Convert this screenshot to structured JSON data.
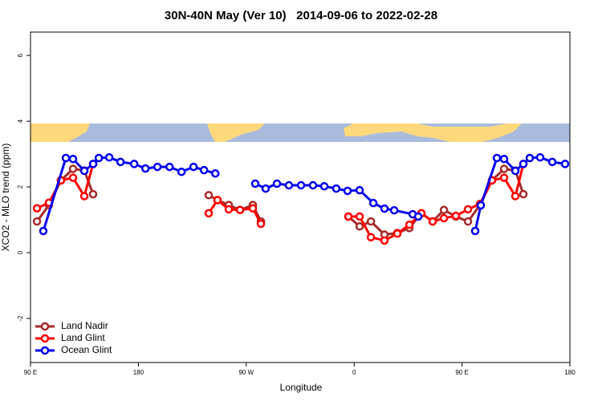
{
  "chart_data": {
    "type": "line",
    "title": "30N-40N May (Ver 10)   2014-09-06 to 2022-02-28",
    "xlabel": "Longitude",
    "ylabel": "XCO2 - MLO trend (ppm)",
    "xlim": [
      90,
      540
    ],
    "ylim": [
      -3.34,
      6.71
    ],
    "xticks": [
      {
        "value": 90,
        "label": "90 E"
      },
      180,
      {
        "value": 270,
        "label": "90 W"
      },
      {
        "value": 360,
        "label": "0"
      },
      {
        "value": 450,
        "label": "90 E"
      },
      {
        "value": 540,
        "label": "180"
      }
    ],
    "yticks": [
      -2,
      0,
      2,
      4,
      6
    ],
    "legend": "bottom-left",
    "series": [
      {
        "name": "Land Nadir",
        "color": "#a52a2a",
        "x": [
          95.4,
          105.4,
          115.4,
          125.5,
          134.9,
          142.2,
          null,
          238.7,
          246,
          255.4,
          264.8,
          275.5,
          282.2,
          null,
          355.2,
          364.6,
          374,
          385.3,
          396,
          406.1,
          416.1,
          425.5,
          434.9,
          444.9,
          455,
          465,
          475,
          485.1,
          494.5,
          501.2
        ],
        "values": [
          0.95,
          1.45,
          2.2,
          2.55,
          2.5,
          1.78,
          null,
          1.75,
          1.6,
          1.45,
          1.3,
          1.45,
          0.95,
          null,
          1.1,
          0.8,
          0.95,
          0.55,
          0.6,
          0.75,
          1.2,
          0.95,
          1.3,
          1.1,
          0.95,
          1.45,
          2.2,
          2.55,
          2.5,
          1.78
        ]
      },
      {
        "name": "Land Glint",
        "color": "#ff0000",
        "x": [
          95.4,
          105.4,
          115.4,
          125.5,
          134.9,
          142.2,
          null,
          238.7,
          246,
          255.4,
          264.8,
          275.5,
          282.2,
          null,
          355.2,
          364.6,
          374,
          385.3,
          396,
          406.1,
          416.1,
          425.5,
          434.9,
          444.9,
          455,
          465,
          475,
          485.1,
          494.5,
          501.2
        ],
        "values": [
          1.35,
          1.52,
          2.2,
          2.28,
          1.72,
          2.7,
          null,
          1.2,
          1.6,
          1.32,
          1.3,
          1.35,
          0.88,
          null,
          1.1,
          1.1,
          0.47,
          0.37,
          0.58,
          0.85,
          1.2,
          0.95,
          1.05,
          1.12,
          1.32,
          1.48,
          2.2,
          2.28,
          1.72,
          2.7
        ]
      },
      {
        "name": "Ocean Glint",
        "color": "#0000ee",
        "x": [
          100.7,
          119.5,
          125.5,
          134.9,
          142.3,
          147,
          155.7,
          165.1,
          176.5,
          185.9,
          195.9,
          206,
          216,
          226,
          234.8,
          244.2,
          null,
          277.5,
          286.2,
          295.6,
          305.6,
          315.7,
          325.7,
          335.1,
          345.1,
          354.5,
          364.6,
          376,
          385.3,
          393.4,
          408.8,
          413.5,
          null,
          461,
          465.7,
          479.1,
          485.1,
          494.5,
          501.2,
          506.5,
          515.2,
          525.3,
          536
        ],
        "values": [
          0.66,
          2.88,
          2.85,
          2.49,
          2.7,
          2.88,
          2.9,
          2.76,
          2.7,
          2.56,
          2.61,
          2.61,
          2.46,
          2.61,
          2.51,
          2.41,
          null,
          2.1,
          1.95,
          2.1,
          2.05,
          2.05,
          2.05,
          2.02,
          1.95,
          1.88,
          1.9,
          1.51,
          1.34,
          1.29,
          1.17,
          1.1,
          null,
          0.66,
          1.44,
          2.88,
          2.85,
          2.49,
          2.7,
          2.88,
          2.9,
          2.76,
          2.7
        ]
      }
    ]
  }
}
